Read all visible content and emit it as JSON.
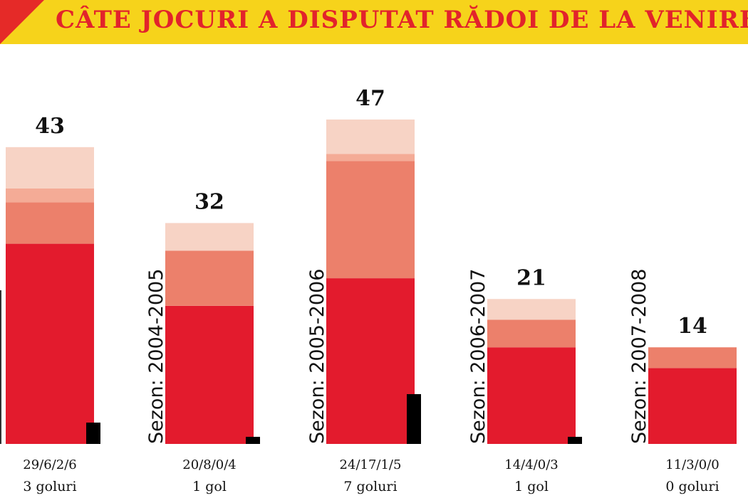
{
  "header": {
    "title": "CÂTE JOCURI A DISPUTAT RĂDOI DE LA VENIREA L",
    "accent_color": "#e52a28",
    "bar_color": "#f6d31b",
    "title_color": "#e2232b"
  },
  "chart_data": {
    "type": "bar",
    "stacked": true,
    "title": "CÂTE JOCURI A DISPUTAT RĂDOI DE LA VENIREA L",
    "categories": [
      "",
      "Sezon: 2004-2005",
      "Sezon: 2005-2006",
      "Sezon: 2006-2007",
      "Sezon: 2007-2008"
    ],
    "totals": [
      43,
      32,
      47,
      21,
      14
    ],
    "breakdown_labels": [
      "29/6/2/6",
      "20/8/0/4",
      "24/17/1/5",
      "14/4/0/3",
      "11/3/0/0"
    ],
    "goal_labels": [
      "3 goluri",
      "1 gol",
      "7 goluri",
      "1 gol",
      "0 goluri"
    ],
    "series": [
      {
        "values": [
          29,
          20,
          24,
          14,
          11
        ],
        "color": "#e31b2d"
      },
      {
        "values": [
          6,
          8,
          17,
          4,
          3
        ],
        "color": "#ec806b"
      },
      {
        "values": [
          2,
          0,
          1,
          0,
          0
        ],
        "color": "#f4ab96"
      },
      {
        "values": [
          6,
          4,
          5,
          3,
          0
        ],
        "color": "#f7d3c5"
      }
    ],
    "goals": [
      3,
      1,
      7,
      1,
      0
    ],
    "goals_color": "#000000",
    "ylim": [
      0,
      47
    ],
    "grid": false,
    "legend": "none"
  }
}
